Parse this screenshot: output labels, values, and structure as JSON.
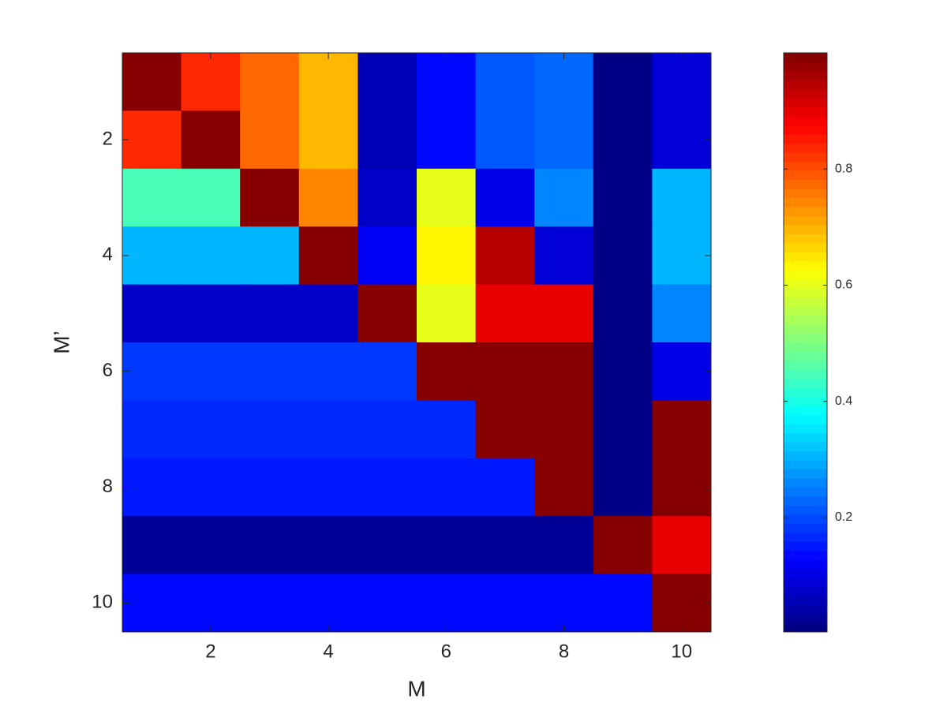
{
  "chart_data": {
    "type": "heatmap",
    "x_label": "M",
    "y_label": "M’",
    "x": [
      1,
      2,
      3,
      4,
      5,
      6,
      7,
      8,
      9,
      10
    ],
    "y": [
      1,
      2,
      3,
      4,
      5,
      6,
      7,
      8,
      9,
      10
    ],
    "z": [
      [
        1.0,
        0.84,
        0.77,
        0.69,
        0.06,
        0.14,
        0.21,
        0.23,
        0.01,
        0.09
      ],
      [
        0.84,
        1.0,
        0.77,
        0.7,
        0.06,
        0.14,
        0.21,
        0.23,
        0.01,
        0.09
      ],
      [
        0.45,
        0.45,
        1.0,
        0.75,
        0.08,
        0.6,
        0.11,
        0.26,
        0.01,
        0.31
      ],
      [
        0.31,
        0.31,
        0.31,
        1.0,
        0.12,
        0.64,
        0.95,
        0.09,
        0.01,
        0.31
      ],
      [
        0.07,
        0.07,
        0.07,
        0.07,
        1.0,
        0.6,
        0.9,
        0.9,
        0.01,
        0.26
      ],
      [
        0.18,
        0.18,
        0.18,
        0.18,
        0.18,
        1.0,
        1.0,
        1.0,
        0.01,
        0.1
      ],
      [
        0.17,
        0.17,
        0.17,
        0.17,
        0.17,
        0.17,
        1.0,
        1.0,
        0.01,
        1.0
      ],
      [
        0.15,
        0.15,
        0.15,
        0.15,
        0.15,
        0.15,
        0.15,
        1.0,
        0.01,
        1.0
      ],
      [
        0.02,
        0.02,
        0.02,
        0.02,
        0.02,
        0.02,
        0.02,
        0.02,
        1.0,
        0.9
      ],
      [
        0.13,
        0.13,
        0.13,
        0.13,
        0.13,
        0.13,
        0.13,
        0.13,
        0.13,
        1.0
      ]
    ],
    "xlim": [
      0.5,
      10.5
    ],
    "xticks": [
      2,
      4,
      6,
      8,
      10
    ],
    "ylim": [
      0.5,
      10.5
    ],
    "yticks": [
      2,
      4,
      6,
      8,
      10
    ],
    "y_reversed": true,
    "colormap": "jet",
    "clim": [
      0.003,
      1.0
    ],
    "cticks": [
      0.2,
      0.4,
      0.6,
      0.8
    ]
  }
}
